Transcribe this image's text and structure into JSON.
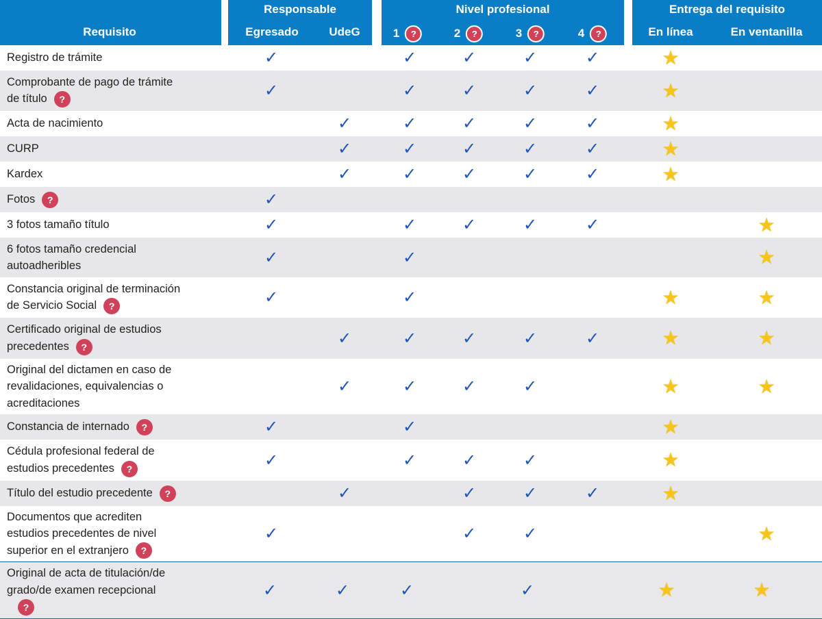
{
  "header": {
    "requisito": "Requisito",
    "groups": {
      "responsable": "Responsable",
      "nivel": "Nivel profesional",
      "entrega": "Entrega del requisito"
    },
    "columns": {
      "egresado": "Egresado",
      "udeg": "UdeG",
      "n1": "1",
      "n2": "2",
      "n3": "3",
      "n4": "4",
      "en_linea": "En línea",
      "en_ventanilla": "En ventanilla"
    },
    "help_glyph": "?"
  },
  "symbols": {
    "check": "✓",
    "star": "★",
    "help": "?"
  },
  "colors": {
    "header_bg": "#0a7dc7",
    "check": "#1f55b8",
    "star": "#f7c51a",
    "help_badge": "#d0425a",
    "row_alt": "#e7e7e9"
  },
  "rows": [
    {
      "lines": [
        "Registro de trámite"
      ],
      "help": false,
      "egresado": true,
      "udeg": false,
      "n1": true,
      "n2": true,
      "n3": true,
      "n4": true,
      "en_linea": true,
      "en_ventanilla": false
    },
    {
      "lines": [
        "Comprobante de pago de trámite",
        "de título"
      ],
      "help": true,
      "egresado": true,
      "udeg": false,
      "n1": true,
      "n2": true,
      "n3": true,
      "n4": true,
      "en_linea": true,
      "en_ventanilla": false
    },
    {
      "lines": [
        "Acta de nacimiento"
      ],
      "help": false,
      "egresado": false,
      "udeg": true,
      "n1": true,
      "n2": true,
      "n3": true,
      "n4": true,
      "en_linea": true,
      "en_ventanilla": false
    },
    {
      "lines": [
        "CURP"
      ],
      "help": false,
      "egresado": false,
      "udeg": true,
      "n1": true,
      "n2": true,
      "n3": true,
      "n4": true,
      "en_linea": true,
      "en_ventanilla": false
    },
    {
      "lines": [
        "Kardex"
      ],
      "help": false,
      "egresado": false,
      "udeg": true,
      "n1": true,
      "n2": true,
      "n3": true,
      "n4": true,
      "en_linea": true,
      "en_ventanilla": false
    },
    {
      "lines": [
        "Fotos"
      ],
      "help": true,
      "egresado": true,
      "udeg": false,
      "n1": false,
      "n2": false,
      "n3": false,
      "n4": false,
      "en_linea": false,
      "en_ventanilla": false
    },
    {
      "lines": [
        "3 fotos tamaño título"
      ],
      "help": false,
      "egresado": true,
      "udeg": false,
      "n1": true,
      "n2": true,
      "n3": true,
      "n4": true,
      "en_linea": false,
      "en_ventanilla": true
    },
    {
      "lines": [
        "6 fotos tamaño credencial",
        "autoadheribles"
      ],
      "help": false,
      "egresado": true,
      "udeg": false,
      "n1": true,
      "n2": false,
      "n3": false,
      "n4": false,
      "en_linea": false,
      "en_ventanilla": true
    },
    {
      "lines": [
        "Constancia original de terminación",
        "de Servicio Social"
      ],
      "help": true,
      "egresado": true,
      "udeg": false,
      "n1": true,
      "n2": false,
      "n3": false,
      "n4": false,
      "en_linea": true,
      "en_ventanilla": true
    },
    {
      "lines": [
        "Certificado original de estudios",
        "precedentes"
      ],
      "help": true,
      "egresado": false,
      "udeg": true,
      "n1": true,
      "n2": true,
      "n3": true,
      "n4": true,
      "en_linea": true,
      "en_ventanilla": true
    },
    {
      "lines": [
        "Original del dictamen en caso de",
        "revalidaciones, equivalencias o",
        "acreditaciones"
      ],
      "help": false,
      "egresado": false,
      "udeg": true,
      "n1": true,
      "n2": true,
      "n3": true,
      "n4": false,
      "en_linea": true,
      "en_ventanilla": true
    },
    {
      "lines": [
        "Constancia de internado"
      ],
      "help": true,
      "egresado": true,
      "udeg": false,
      "n1": true,
      "n2": false,
      "n3": false,
      "n4": false,
      "en_linea": true,
      "en_ventanilla": false
    },
    {
      "lines": [
        "Cédula profesional federal de",
        "estudios precedentes"
      ],
      "help": true,
      "egresado": true,
      "udeg": false,
      "n1": true,
      "n2": true,
      "n3": true,
      "n4": false,
      "en_linea": true,
      "en_ventanilla": false
    },
    {
      "lines": [
        "Título del estudio precedente"
      ],
      "help": true,
      "egresado": false,
      "udeg": true,
      "n1": false,
      "n2": true,
      "n3": true,
      "n4": true,
      "en_linea": true,
      "en_ventanilla": false
    },
    {
      "lines": [
        "Documentos que acrediten",
        "estudios precedentes de nivel",
        "superior en el extranjero"
      ],
      "help": true,
      "egresado": true,
      "udeg": false,
      "n1": false,
      "n2": true,
      "n3": true,
      "n4": false,
      "en_linea": false,
      "en_ventanilla": true
    },
    {
      "lines": [
        "Original de acta de titulación/de",
        "grado/de examen recepcional"
      ],
      "help": true,
      "help_own_line": true,
      "egresado": true,
      "udeg": true,
      "n1": true,
      "n2": false,
      "n3": true,
      "n4": false,
      "en_linea": true,
      "en_ventanilla": true
    }
  ]
}
